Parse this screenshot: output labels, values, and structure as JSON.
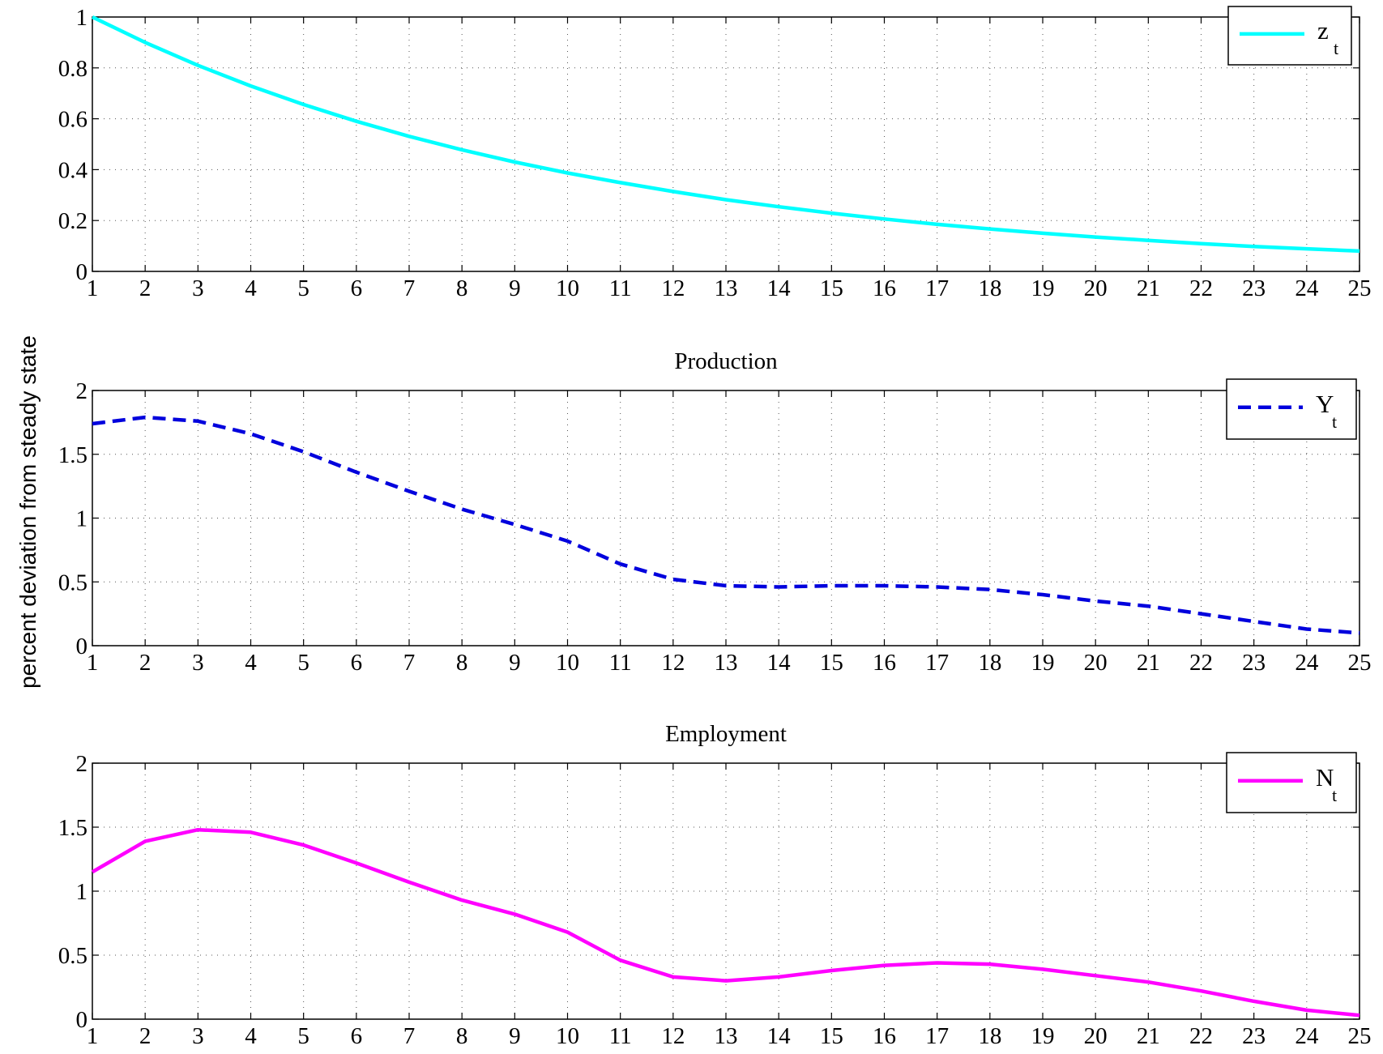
{
  "ylabel": "percent deviation from steady state",
  "chart_data": [
    {
      "type": "line",
      "title": "",
      "xlabel": "",
      "ylabel": "",
      "x": [
        1,
        2,
        3,
        4,
        5,
        6,
        7,
        8,
        9,
        10,
        11,
        12,
        13,
        14,
        15,
        16,
        17,
        18,
        19,
        20,
        21,
        22,
        23,
        24,
        25
      ],
      "xlim": [
        1,
        25
      ],
      "ylim": [
        0,
        1
      ],
      "yticks": [
        0,
        0.2,
        0.4,
        0.6,
        0.8,
        1
      ],
      "ytick_labels": [
        "0",
        "0.2",
        "0.4",
        "0.6",
        "0.8",
        "1"
      ],
      "grid": true,
      "legend_position": "top-right",
      "series": [
        {
          "name": "z",
          "subscript": "t",
          "color": "#00ffff",
          "style": "solid",
          "values": [
            1.0,
            0.9,
            0.81,
            0.729,
            0.656,
            0.59,
            0.531,
            0.478,
            0.43,
            0.387,
            0.349,
            0.314,
            0.282,
            0.254,
            0.229,
            0.206,
            0.185,
            0.167,
            0.15,
            0.135,
            0.122,
            0.109,
            0.098,
            0.089,
            0.08
          ]
        }
      ]
    },
    {
      "type": "line",
      "title": "Production",
      "xlabel": "",
      "ylabel": "",
      "x": [
        1,
        2,
        3,
        4,
        5,
        6,
        7,
        8,
        9,
        10,
        11,
        12,
        13,
        14,
        15,
        16,
        17,
        18,
        19,
        20,
        21,
        22,
        23,
        24,
        25
      ],
      "xlim": [
        1,
        25
      ],
      "ylim": [
        0,
        2
      ],
      "yticks": [
        0,
        0.5,
        1,
        1.5,
        2
      ],
      "ytick_labels": [
        "0",
        "0.5",
        "1",
        "1.5",
        "2"
      ],
      "grid": true,
      "legend_position": "top-right",
      "series": [
        {
          "name": "Y",
          "subscript": "t",
          "color": "#0000dd",
          "style": "dashed",
          "values": [
            1.74,
            1.79,
            1.76,
            1.66,
            1.52,
            1.36,
            1.21,
            1.07,
            0.95,
            0.82,
            0.64,
            0.52,
            0.47,
            0.46,
            0.47,
            0.47,
            0.46,
            0.44,
            0.4,
            0.35,
            0.31,
            0.25,
            0.19,
            0.13,
            0.1
          ]
        }
      ]
    },
    {
      "type": "line",
      "title": "Employment",
      "xlabel": "",
      "ylabel": "",
      "x": [
        1,
        2,
        3,
        4,
        5,
        6,
        7,
        8,
        9,
        10,
        11,
        12,
        13,
        14,
        15,
        16,
        17,
        18,
        19,
        20,
        21,
        22,
        23,
        24,
        25
      ],
      "xlim": [
        1,
        25
      ],
      "ylim": [
        0,
        2
      ],
      "yticks": [
        0,
        0.5,
        1,
        1.5,
        2
      ],
      "ytick_labels": [
        "0",
        "0.5",
        "1",
        "1.5",
        "2"
      ],
      "grid": true,
      "legend_position": "top-right",
      "series": [
        {
          "name": "N",
          "subscript": "t",
          "color": "#ff00ff",
          "style": "solid",
          "values": [
            1.15,
            1.39,
            1.48,
            1.46,
            1.36,
            1.22,
            1.07,
            0.93,
            0.82,
            0.68,
            0.46,
            0.33,
            0.3,
            0.33,
            0.38,
            0.42,
            0.44,
            0.43,
            0.39,
            0.34,
            0.29,
            0.22,
            0.14,
            0.07,
            0.03
          ]
        }
      ]
    }
  ]
}
